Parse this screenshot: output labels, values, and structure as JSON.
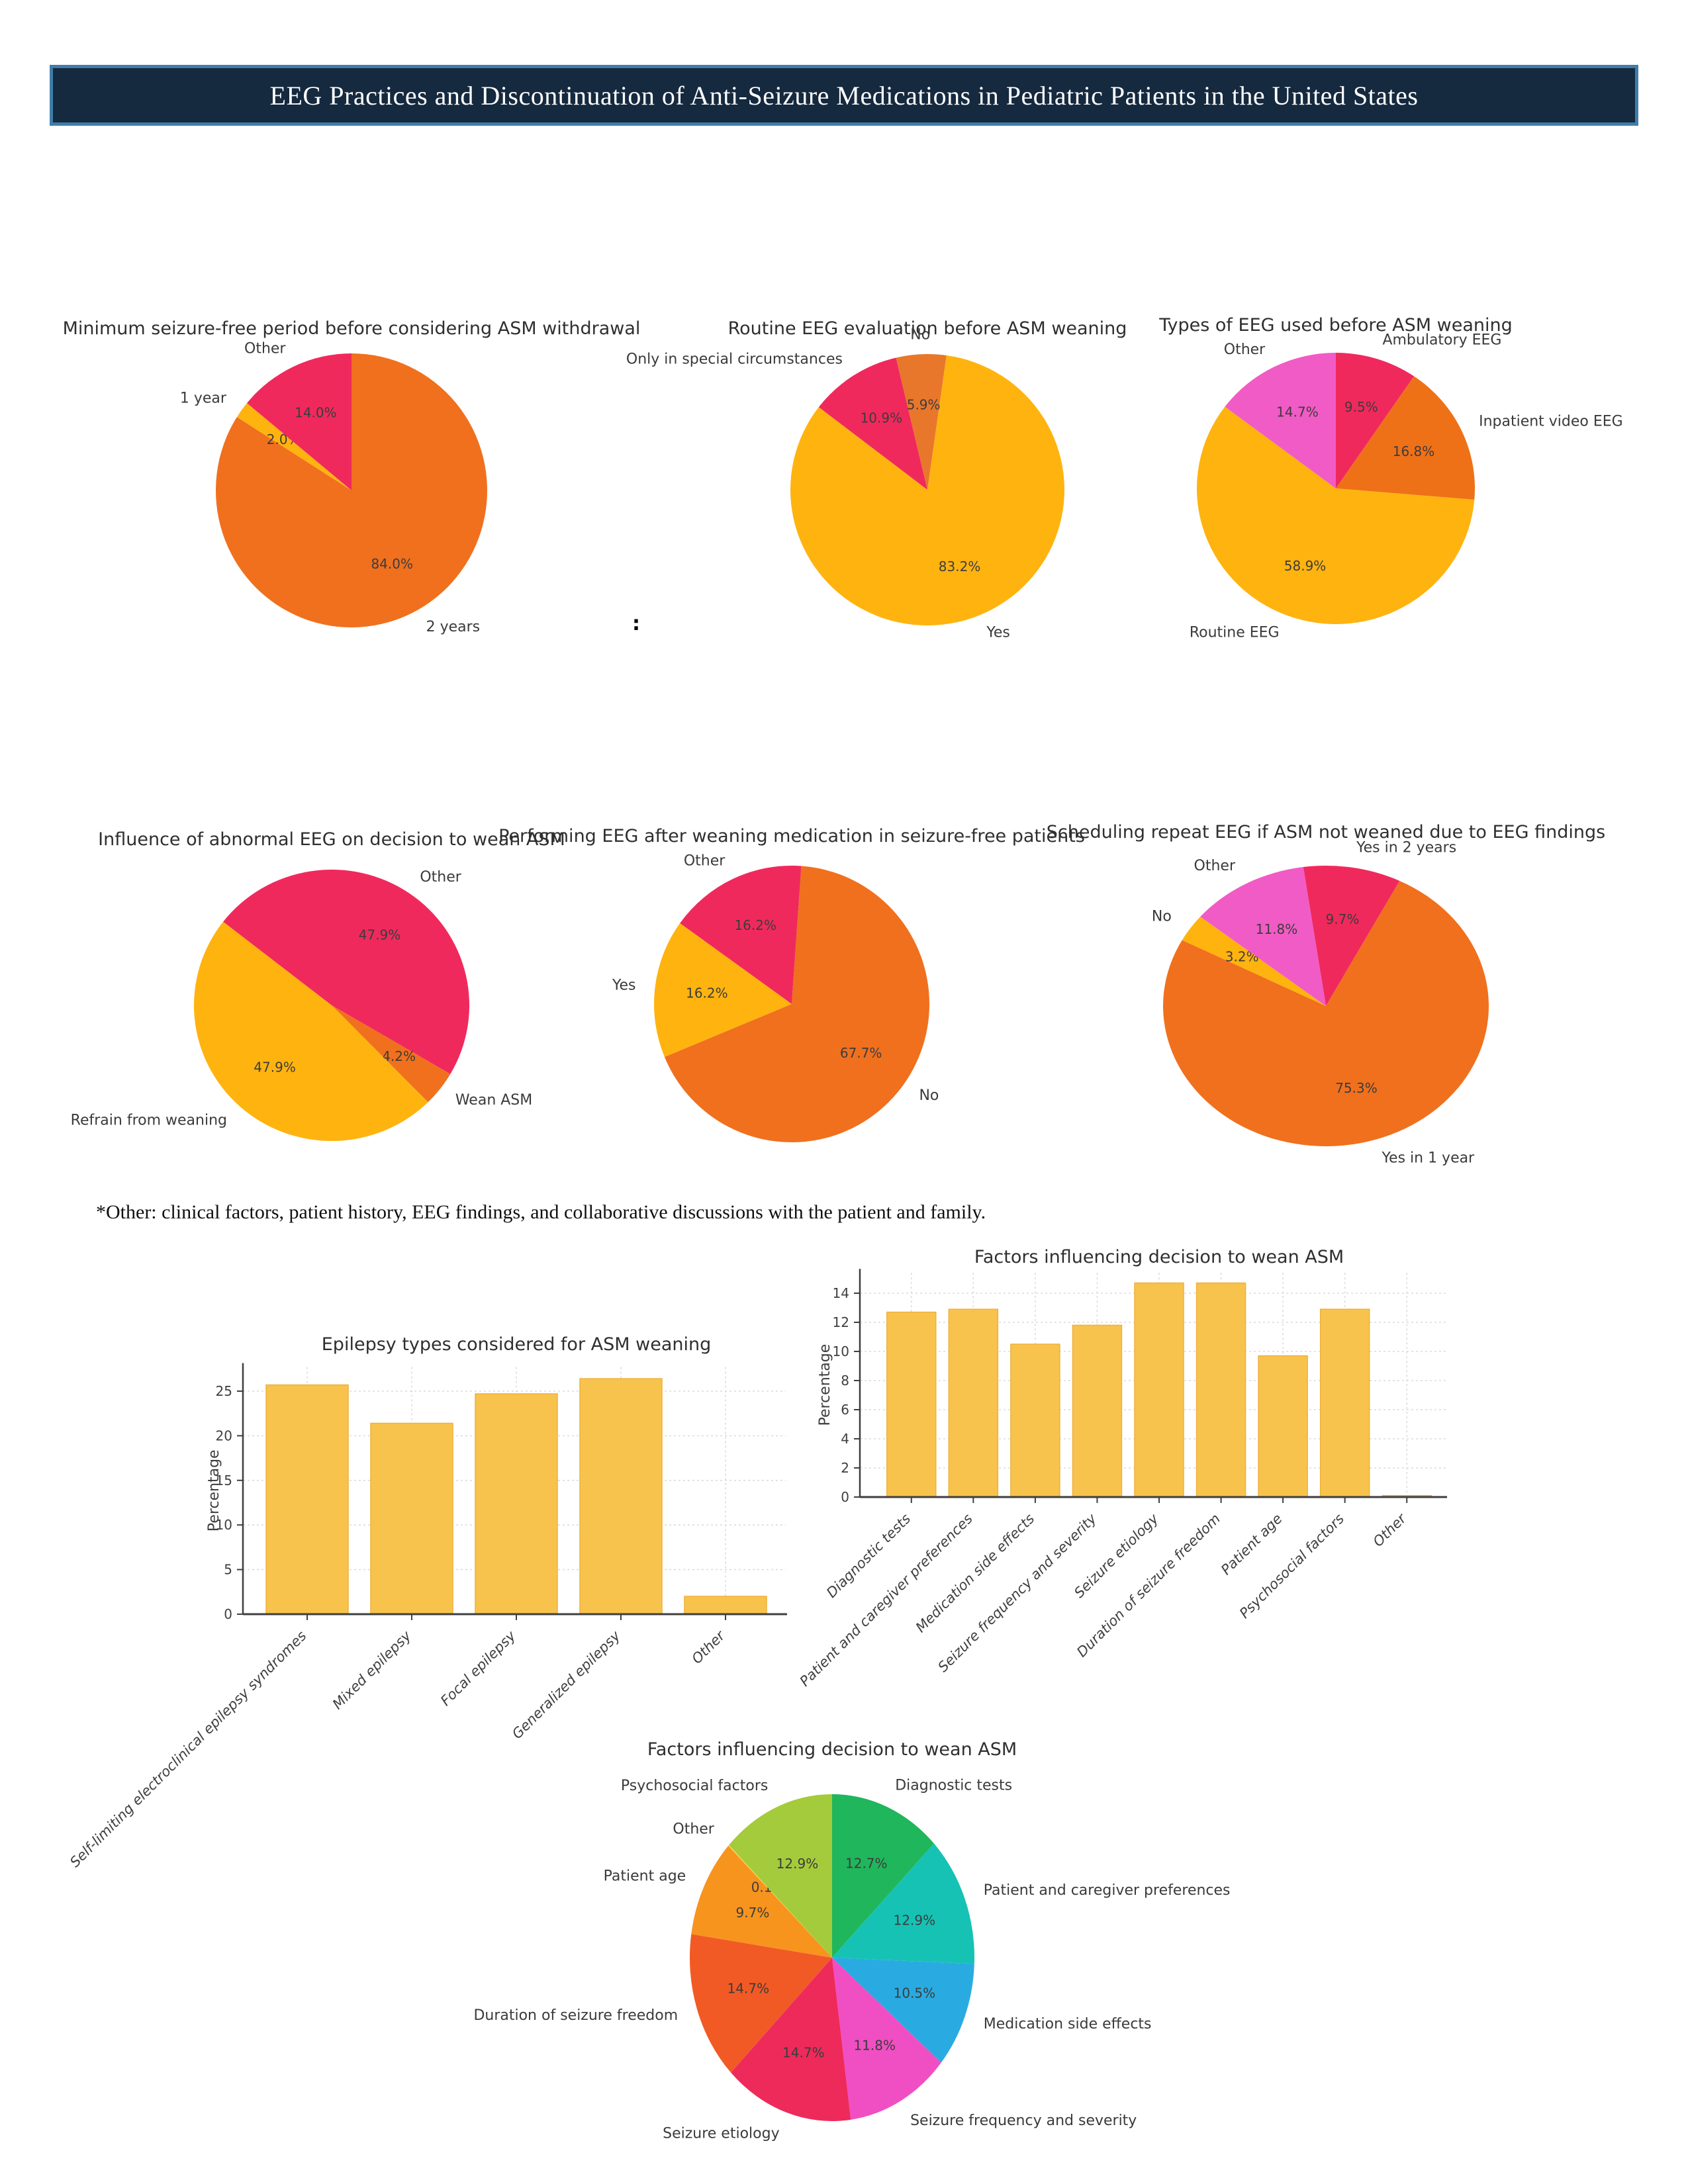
{
  "page": {
    "title": "EEG Practices and Discontinuation of Anti-Seizure Medications in Pediatric Patients in the United States",
    "separator": ":",
    "footnote": "*Other: clinical factors, patient history, EEG findings, and collaborative discussions with the patient and family."
  },
  "palette": {
    "crimson": "#F0295C",
    "amber": "#FFB30F",
    "orange": "#F0701E",
    "magenta": "#F15BC5",
    "bar_fill": "#F8C34C",
    "bar_edge": "#EFB13B"
  },
  "chart_data": [
    {
      "id": "pie-min-seizure-free-period",
      "type": "pie",
      "title": "Minimum seizure-free period before considering ASM withdrawal",
      "start_angle": 90,
      "clockwise": true,
      "slices": [
        {
          "label": "2 years",
          "value": 84.0,
          "pct_label": "84.0%",
          "color": "#F0701E"
        },
        {
          "label": "1 year",
          "value": 2.0,
          "pct_label": "2.0%",
          "color": "#FFB30F"
        },
        {
          "label": "Other",
          "value": 14.0,
          "pct_label": "14.0%",
          "color": "#F0295C"
        }
      ]
    },
    {
      "id": "pie-routine-eeg-evaluation",
      "type": "pie",
      "title": "Routine EEG evaluation before ASM weaning",
      "start_angle": 82,
      "clockwise": true,
      "slices": [
        {
          "label": "Yes",
          "value": 83.2,
          "pct_label": "83.2%",
          "color": "#FFB30F"
        },
        {
          "label": "Only in special circumstances",
          "value": 10.9,
          "pct_label": "10.9%",
          "color": "#F0295C"
        },
        {
          "label": "No",
          "value": 5.9,
          "pct_label": "5.9%",
          "color": "#E8772B"
        }
      ]
    },
    {
      "id": "pie-types-of-eeg",
      "type": "pie",
      "title": "Types of EEG used before ASM weaning",
      "start_angle": 90,
      "clockwise": true,
      "slices": [
        {
          "label": "Ambulatory EEG",
          "value": 9.5,
          "pct_label": "9.5%",
          "color": "#F0295C"
        },
        {
          "label": "Inpatient video EEG",
          "value": 16.8,
          "pct_label": "16.8%",
          "color": "#EE7118"
        },
        {
          "label": "Routine EEG",
          "value": 58.9,
          "pct_label": "58.9%",
          "color": "#FFB30F"
        },
        {
          "label": "Other",
          "value": 14.7,
          "pct_label": "14.7%",
          "color": "#F15BC5"
        }
      ]
    },
    {
      "id": "pie-influence-abnormal-eeg",
      "type": "pie",
      "title": "Influence of abnormal EEG on decision to wean ASM",
      "start_angle": 142,
      "clockwise": true,
      "slices": [
        {
          "label": "Other",
          "value": 47.9,
          "pct_label": "47.9%",
          "color": "#F0295C"
        },
        {
          "label": "Wean ASM",
          "value": 4.2,
          "pct_label": "4.2%",
          "color": "#F0701E"
        },
        {
          "label": "Refrain from weaning",
          "value": 47.9,
          "pct_label": "47.9%",
          "color": "#FFB30F"
        }
      ]
    },
    {
      "id": "pie-eeg-after-weaning",
      "type": "pie",
      "title": "Performing EEG after weaning medication in seizure-free patients",
      "start_angle": 86,
      "clockwise": true,
      "slices": [
        {
          "label": "No",
          "value": 67.7,
          "pct_label": "67.7%",
          "color": "#F0701E"
        },
        {
          "label": "Yes",
          "value": 16.2,
          "pct_label": "16.2%",
          "color": "#FFB30F"
        },
        {
          "label": "Other",
          "value": 16.2,
          "pct_label": "16.2%",
          "color": "#F0295C"
        }
      ]
    },
    {
      "id": "pie-scheduling-repeat-eeg",
      "type": "pie",
      "title": "Scheduling repeat EEG if ASM not weaned due to EEG findings",
      "start_angle": 98,
      "clockwise": true,
      "slices": [
        {
          "label": "Yes in 2 years",
          "value": 9.7,
          "pct_label": "9.7%",
          "color": "#F0295C"
        },
        {
          "label": "Yes in 1 year",
          "value": 75.3,
          "pct_label": "75.3%",
          "color": "#F0701E"
        },
        {
          "label": "No",
          "value": 3.2,
          "pct_label": "3.2%",
          "color": "#FFB30F"
        },
        {
          "label": "Other",
          "value": 11.8,
          "pct_label": "11.8%",
          "color": "#F15BC5"
        }
      ]
    },
    {
      "id": "bar-epilepsy-types",
      "type": "bar",
      "title": "Epilepsy types considered for ASM weaning",
      "xlabel": "",
      "ylabel": "Percentage",
      "yticks": [
        0,
        5,
        10,
        15,
        20,
        25
      ],
      "ylim": [
        0,
        27.7
      ],
      "grid": true,
      "bar_color": "#F8C34C",
      "bar_edge_color": "#EFB13B",
      "categories": [
        "Self-limiting electroclinical epilepsy syndromes",
        "Mixed epilepsy",
        "Focal epilepsy",
        "Generalized epilepsy",
        "Other"
      ],
      "values": [
        25.7,
        21.4,
        24.7,
        26.4,
        2.0
      ]
    },
    {
      "id": "bar-factors-wean",
      "type": "bar",
      "title": "Factors influencing decision to wean ASM",
      "xlabel": "",
      "ylabel": "Percentage",
      "yticks": [
        0,
        2,
        4,
        6,
        8,
        10,
        12,
        14
      ],
      "ylim": [
        0,
        15.4
      ],
      "grid": true,
      "bar_color": "#F8C34C",
      "bar_edge_color": "#EFB13B",
      "categories": [
        "Diagnostic tests",
        "Patient and caregiver preferences",
        "Medication side effects",
        "Seizure frequency and severity",
        "Seizure etiology",
        "Duration of seizure freedom",
        "Patient age",
        "Psychosocial factors",
        "Other"
      ],
      "values": [
        12.7,
        12.9,
        10.5,
        11.8,
        14.7,
        14.7,
        9.7,
        12.9,
        0.1
      ]
    },
    {
      "id": "pie-factors-wean",
      "type": "pie",
      "title": "Factors influencing decision to wean ASM",
      "start_angle": 90,
      "clockwise": true,
      "slices": [
        {
          "label": "Diagnostic tests",
          "value": 12.7,
          "pct_label": "12.7%",
          "color": "#20B65C"
        },
        {
          "label": "Patient and caregiver preferences",
          "value": 12.9,
          "pct_label": "12.9%",
          "color": "#16C2B4"
        },
        {
          "label": "Medication side effects",
          "value": 10.5,
          "pct_label": "10.5%",
          "color": "#29ABE2"
        },
        {
          "label": "Seizure frequency and severity",
          "value": 11.8,
          "pct_label": "11.8%",
          "color": "#F04EC3"
        },
        {
          "label": "Seizure etiology",
          "value": 14.7,
          "pct_label": "14.7%",
          "color": "#EE2A5B"
        },
        {
          "label": "Duration of seizure freedom",
          "value": 14.7,
          "pct_label": "14.7%",
          "color": "#F15A25"
        },
        {
          "label": "Patient age",
          "value": 9.7,
          "pct_label": "9.7%",
          "color": "#F7941E"
        },
        {
          "label": "Other",
          "value": 0.1,
          "pct_label": "0.1%",
          "color": "#FFD23F"
        },
        {
          "label": "Psychosocial factors",
          "value": 12.9,
          "pct_label": "12.9%",
          "color": "#A4CB3B"
        }
      ]
    }
  ]
}
